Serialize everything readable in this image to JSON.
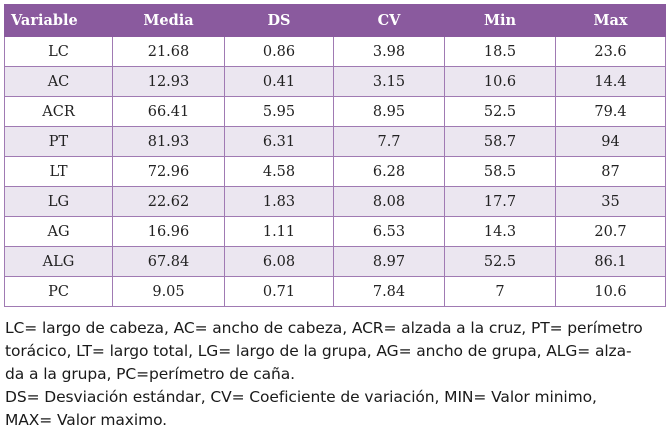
{
  "table": {
    "headers": [
      "Variable",
      "Media",
      "DS",
      "CV",
      "Min",
      "Max"
    ],
    "rows": [
      [
        "LC",
        "21.68",
        "0.86",
        "3.98",
        "18.5",
        "23.6"
      ],
      [
        "AC",
        "12.93",
        "0.41",
        "3.15",
        "10.6",
        "14.4"
      ],
      [
        "ACR",
        "66.41",
        "5.95",
        "8.95",
        "52.5",
        "79.4"
      ],
      [
        "PT",
        "81.93",
        "6.31",
        "7.7",
        "58.7",
        "94"
      ],
      [
        "LT",
        "72.96",
        "4.58",
        "6.28",
        "58.5",
        "87"
      ],
      [
        "LG",
        "22.62",
        "1.83",
        "8.08",
        "17.7",
        "35"
      ],
      [
        "AG",
        "16.96",
        "1.11",
        "6.53",
        "14.3",
        "20.7"
      ],
      [
        "ALG",
        "67.84",
        "6.08",
        "8.97",
        "52.5",
        "86.1"
      ],
      [
        "PC",
        "9.05",
        "0.71",
        "7.84",
        "7",
        "10.6"
      ]
    ]
  },
  "notes": {
    "lines_1": [
      "LC= largo de cabeza, AC= ancho de cabeza, ACR= alzada a la cruz, PT= perímetro",
      "torácico, LT= largo total, LG= largo de la grupa, AG= ancho de grupa, ALG= alza-",
      "da a la grupa, PC=perímetro de caña."
    ],
    "lines_2": [
      "DS= Desviación estándar, CV= Coeficiente de variación, MIN= Valor minimo,",
      "MAX= Valor maximo."
    ]
  },
  "colors": {
    "header_bg": "#8a5a9e",
    "stripe_bg": "#ebe6f0",
    "border": "#a07ab3"
  }
}
